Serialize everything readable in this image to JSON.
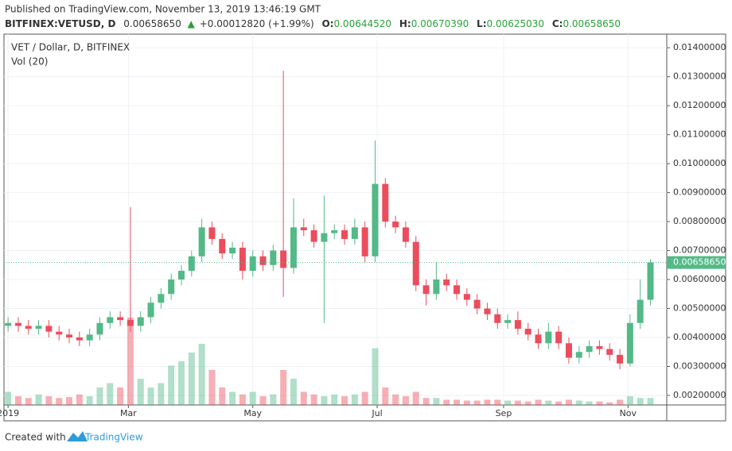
{
  "header": {
    "published": "Published on TradingView.com, November 13, 2019 13:46:19 GMT",
    "symbol": "BITFINEX:VETUSD, D",
    "last": "0.00658650",
    "change": "+0.00012820 (+1.99%)",
    "open_label": "O:",
    "open": "0.00644520",
    "high_label": "H:",
    "high": "0.00670390",
    "low_label": "L:",
    "low": "0.00625030",
    "close_label": "C:",
    "close": "0.00658650"
  },
  "footer": {
    "created": "Created with",
    "brand": "TradingView"
  },
  "chart_data": {
    "type": "candlestick",
    "title": "VET / Dollar, D, BITFINEX",
    "volume_label": "Vol (20)",
    "up_color": "#53b987",
    "down_color": "#eb4d5c",
    "grid": true,
    "x": [
      0,
      5,
      10,
      15,
      20,
      25,
      30,
      35,
      40,
      45,
      50,
      55,
      60,
      65,
      70,
      75,
      80,
      85,
      90,
      95,
      100,
      105,
      110,
      115,
      120,
      125,
      130,
      135,
      140,
      145,
      150,
      155,
      160,
      165,
      170,
      175,
      180,
      185,
      190,
      195,
      200,
      205,
      210,
      215,
      220,
      225,
      230,
      235,
      240,
      245,
      250,
      255,
      260,
      265,
      270,
      275,
      280,
      285,
      290,
      295,
      300,
      305,
      310,
      315
    ],
    "open": [
      0.0044,
      0.0045,
      0.0044,
      0.0043,
      0.0044,
      0.0042,
      0.0041,
      0.004,
      0.0039,
      0.0041,
      0.0045,
      0.0047,
      0.0046,
      0.0044,
      0.0047,
      0.0052,
      0.0055,
      0.006,
      0.0063,
      0.0068,
      0.0078,
      0.0074,
      0.0069,
      0.0071,
      0.0063,
      0.0068,
      0.0065,
      0.007,
      0.0064,
      0.0078,
      0.0077,
      0.0073,
      0.0076,
      0.0077,
      0.0074,
      0.0078,
      0.0068,
      0.0093,
      0.008,
      0.0078,
      0.0073,
      0.0058,
      0.0055,
      0.006,
      0.0058,
      0.0055,
      0.0053,
      0.005,
      0.0048,
      0.0045,
      0.0046,
      0.0043,
      0.0041,
      0.0038,
      0.0042,
      0.0038,
      0.0033,
      0.0035,
      0.0037,
      0.0036,
      0.0034,
      0.0031,
      0.0045,
      0.0053
    ],
    "high": [
      0.0047,
      0.0047,
      0.0046,
      0.0046,
      0.0046,
      0.0044,
      0.0043,
      0.0042,
      0.0043,
      0.0047,
      0.0049,
      0.0049,
      0.0085,
      0.0049,
      0.0054,
      0.0057,
      0.0062,
      0.0065,
      0.007,
      0.0081,
      0.008,
      0.0076,
      0.0073,
      0.0073,
      0.007,
      0.007,
      0.0072,
      0.0132,
      0.0088,
      0.0081,
      0.0079,
      0.0089,
      0.0079,
      0.0079,
      0.0081,
      0.008,
      0.0108,
      0.0095,
      0.0082,
      0.008,
      0.0075,
      0.006,
      0.0066,
      0.0062,
      0.006,
      0.0057,
      0.0055,
      0.0052,
      0.005,
      0.0048,
      0.0049,
      0.0045,
      0.0043,
      0.0045,
      0.0044,
      0.004,
      0.0037,
      0.0039,
      0.0039,
      0.0038,
      0.0036,
      0.0048,
      0.006,
      0.0067
    ],
    "low": [
      0.0042,
      0.0042,
      0.0041,
      0.0041,
      0.004,
      0.0039,
      0.0038,
      0.0037,
      0.0037,
      0.0039,
      0.0043,
      0.0044,
      0.0042,
      0.0042,
      0.0045,
      0.005,
      0.0053,
      0.0058,
      0.0061,
      0.0066,
      0.0072,
      0.0067,
      0.0067,
      0.006,
      0.0061,
      0.0063,
      0.0063,
      0.0054,
      0.0062,
      0.0075,
      0.0071,
      0.0045,
      0.0074,
      0.0072,
      0.0072,
      0.0066,
      0.0066,
      0.0078,
      0.0076,
      0.0071,
      0.0056,
      0.0051,
      0.0053,
      0.0056,
      0.0053,
      0.0051,
      0.0048,
      0.0046,
      0.0043,
      0.0043,
      0.0041,
      0.0039,
      0.0036,
      0.0036,
      0.0036,
      0.0031,
      0.0031,
      0.0033,
      0.0034,
      0.0032,
      0.0029,
      0.003,
      0.0043,
      0.0051
    ],
    "close": [
      0.0045,
      0.0044,
      0.0043,
      0.0044,
      0.0042,
      0.0041,
      0.004,
      0.0039,
      0.0041,
      0.0045,
      0.0047,
      0.0046,
      0.0044,
      0.0047,
      0.0052,
      0.0055,
      0.006,
      0.0063,
      0.0068,
      0.0078,
      0.0074,
      0.0069,
      0.0071,
      0.0063,
      0.0068,
      0.0065,
      0.007,
      0.0064,
      0.0078,
      0.0077,
      0.0073,
      0.0076,
      0.0077,
      0.0074,
      0.0078,
      0.0068,
      0.0093,
      0.008,
      0.0078,
      0.0073,
      0.0058,
      0.0055,
      0.006,
      0.0058,
      0.0055,
      0.0053,
      0.005,
      0.0048,
      0.0045,
      0.0046,
      0.0043,
      0.0041,
      0.0038,
      0.0042,
      0.0038,
      0.0033,
      0.0035,
      0.0037,
      0.0036,
      0.0034,
      0.0031,
      0.0045,
      0.0053,
      0.0065865
    ],
    "volume": [
      15,
      10,
      8,
      12,
      10,
      8,
      9,
      12,
      10,
      20,
      25,
      20,
      100,
      30,
      20,
      25,
      45,
      50,
      60,
      70,
      40,
      20,
      15,
      12,
      15,
      10,
      12,
      40,
      30,
      15,
      12,
      10,
      12,
      10,
      12,
      15,
      65,
      20,
      12,
      10,
      15,
      8,
      8,
      6,
      6,
      5,
      5,
      6,
      6,
      5,
      5,
      4,
      6,
      5,
      4,
      6,
      5,
      4,
      4,
      3,
      6,
      10,
      8,
      8
    ],
    "xlim": [
      -2,
      323
    ],
    "xticks": [
      {
        "value": 0,
        "label": "2019"
      },
      {
        "value": 59,
        "label": "Mar"
      },
      {
        "value": 120,
        "label": "May"
      },
      {
        "value": 181,
        "label": "Jul"
      },
      {
        "value": 243,
        "label": "Sep"
      },
      {
        "value": 304,
        "label": "Nov"
      }
    ],
    "ylim": [
      0.00167,
      0.01447
    ],
    "yticks": [
      {
        "value": 0.002,
        "label": "0.00200000"
      },
      {
        "value": 0.003,
        "label": "0.00300000"
      },
      {
        "value": 0.004,
        "label": "0.00400000"
      },
      {
        "value": 0.005,
        "label": "0.00500000"
      },
      {
        "value": 0.006,
        "label": "0.00600000"
      },
      {
        "value": 0.007,
        "label": "0.00700000"
      },
      {
        "value": 0.008,
        "label": "0.00800000"
      },
      {
        "value": 0.009,
        "label": "0.00900000"
      },
      {
        "value": 0.01,
        "label": "0.01000000"
      },
      {
        "value": 0.011,
        "label": "0.01100000"
      },
      {
        "value": 0.012,
        "label": "0.01200000"
      },
      {
        "value": 0.013,
        "label": "0.01300000"
      },
      {
        "value": 0.014,
        "label": "0.01400000"
      }
    ],
    "last_price": {
      "value": 0.0065865,
      "label": "0.00658650"
    }
  }
}
